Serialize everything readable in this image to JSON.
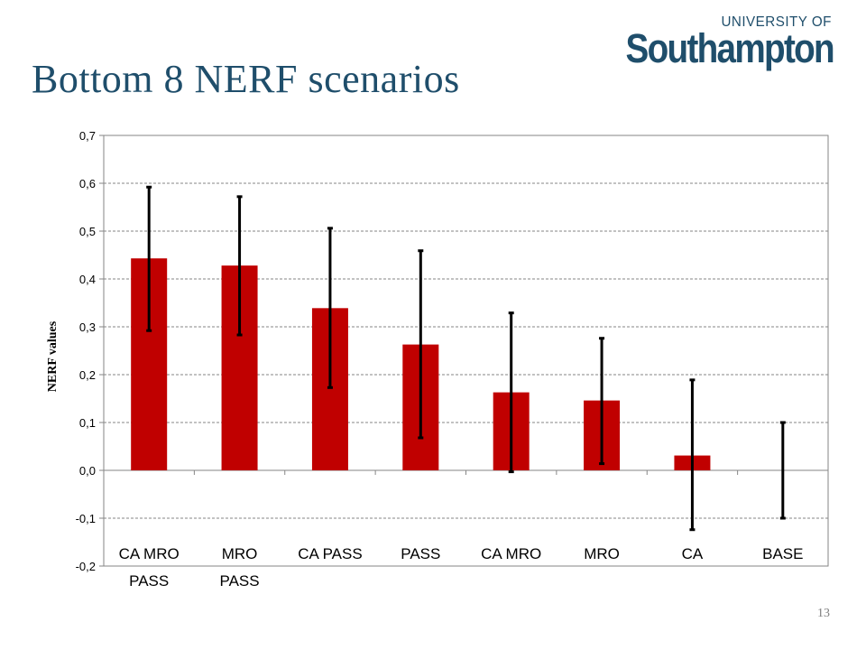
{
  "slide": {
    "title": "Bottom 8 NERF scenarios",
    "page_number": "13"
  },
  "logo": {
    "line1": "UNIVERSITY OF",
    "line2": "Southampton"
  },
  "colors": {
    "title": "#1f4e6b",
    "bar": "#c00000",
    "error_bar": "#000000",
    "gridline": "#868686"
  },
  "chart_data": {
    "type": "bar",
    "ylabel": "NERF values",
    "xlabel": "",
    "ylim": [
      -0.2,
      0.7
    ],
    "yticks": [
      -0.2,
      -0.1,
      0.0,
      0.1,
      0.2,
      0.3,
      0.4,
      0.5,
      0.6,
      0.7
    ],
    "ytick_labels": [
      "-0,2",
      "-0,1",
      "0,0",
      "0,1",
      "0,2",
      "0,3",
      "0,4",
      "0,5",
      "0,6",
      "0,7"
    ],
    "grid": true,
    "legend": "none",
    "categories": [
      [
        "CA MRO",
        "PASS"
      ],
      [
        "MRO",
        "PASS"
      ],
      [
        "CA PASS"
      ],
      [
        "PASS"
      ],
      [
        "CA MRO"
      ],
      [
        "MRO"
      ],
      [
        "CA"
      ],
      [
        "BASE"
      ]
    ],
    "values": [
      0.443,
      0.428,
      0.339,
      0.263,
      0.163,
      0.146,
      0.031,
      0.0
    ],
    "error_low": [
      0.292,
      0.283,
      0.173,
      0.068,
      -0.003,
      0.014,
      -0.124,
      -0.1
    ],
    "error_high": [
      0.592,
      0.572,
      0.506,
      0.459,
      0.329,
      0.276,
      0.189,
      0.1
    ]
  }
}
